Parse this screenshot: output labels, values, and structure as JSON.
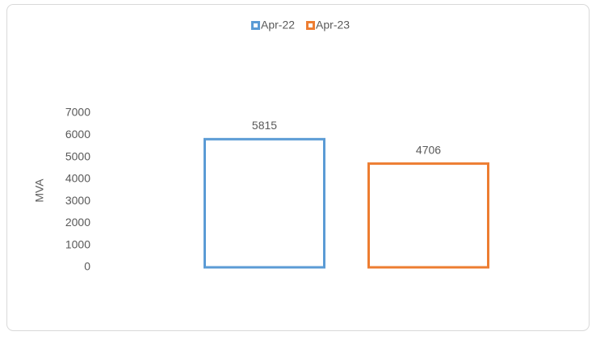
{
  "chart_data": {
    "type": "bar",
    "y_label": "MVA",
    "categories": [
      null
    ],
    "series": [
      {
        "name": "Apr-22",
        "color": "#5b9bd5",
        "values": [
          5815
        ]
      },
      {
        "name": "Apr-23",
        "color": "#ed7d31",
        "values": [
          4706
        ]
      }
    ],
    "ylim": [
      0,
      7000
    ],
    "yticks": [
      0,
      1000,
      2000,
      3000,
      4000,
      5000,
      6000,
      7000
    ],
    "grid": false,
    "legend": "top",
    "fill": false
  }
}
